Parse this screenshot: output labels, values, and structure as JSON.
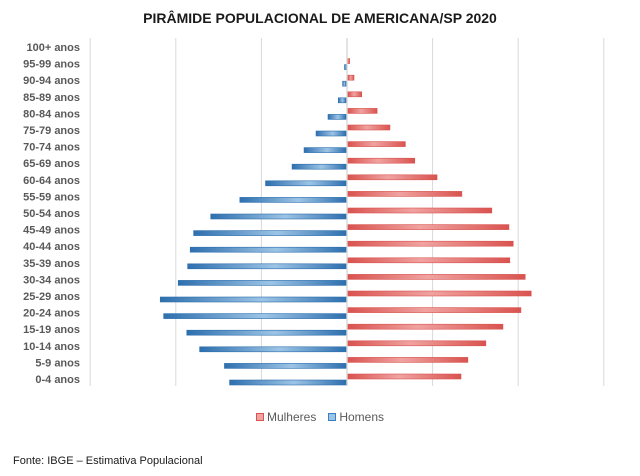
{
  "chart_data": {
    "type": "bar",
    "orientation": "horizontal",
    "subtype": "population-pyramid",
    "title": "PIRÂMIDE POPULACIONAL DE AMERICANA/SP 2020",
    "xlabel": "",
    "ylabel": "",
    "value_units": "gridline intervals (no axis tick labels shown)",
    "xlim": [
      -3,
      3
    ],
    "grid": true,
    "legend_position": "bottom",
    "categories": [
      "100+ anos",
      "95-99 anos",
      "90-94 anos",
      "85-89 anos",
      "80-84 anos",
      "75-79 anos",
      "70-74 anos",
      "65-69 anos",
      "60-64 anos",
      "55-59 anos",
      "50-54 anos",
      "45-49 anos",
      "40-44 anos",
      "35-39 anos",
      "30-34 anos",
      "25-29 anos",
      "20-24 anos",
      "15-19 anos",
      "10-14 anos",
      "5-9 anos",
      "0-4 anos"
    ],
    "series": [
      {
        "name": "Mulheres",
        "color": "#d9534f",
        "values": [
          0.0,
          0.02,
          0.07,
          0.16,
          0.34,
          0.49,
          0.67,
          0.78,
          1.04,
          1.33,
          1.68,
          1.88,
          1.93,
          1.89,
          2.07,
          2.14,
          2.02,
          1.81,
          1.61,
          1.4,
          1.32
        ]
      },
      {
        "name": "Homens",
        "color": "#3a7fc0",
        "values": [
          0.0,
          0.01,
          0.04,
          0.09,
          0.21,
          0.35,
          0.49,
          0.63,
          0.94,
          1.24,
          1.58,
          1.78,
          1.82,
          1.85,
          1.96,
          2.17,
          2.13,
          1.86,
          1.71,
          1.42,
          1.36
        ]
      }
    ]
  },
  "footer": {
    "source": "Fonte: IBGE – Estimativa Populacional"
  }
}
